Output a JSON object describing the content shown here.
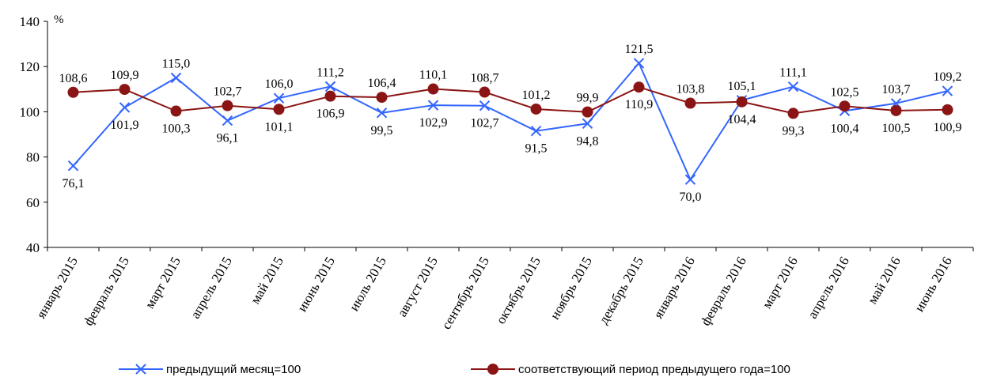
{
  "chart_data": {
    "type": "line",
    "title": "",
    "xlabel": "",
    "ylabel": "%",
    "ylim": [
      40,
      140
    ],
    "yticks": [
      40,
      60,
      80,
      100,
      120,
      140
    ],
    "grid": false,
    "legend_position": "bottom",
    "categories": [
      "январь  2015",
      "февраль  2015",
      "март 2015",
      "апрель 2015",
      "май 2015",
      "июнь 2015",
      "июль 2015",
      "август 2015",
      "сентябрь 2015",
      "октябрь 2015",
      "ноябрь 2015",
      "декабрь 2015",
      "январь 2016",
      "февраль 2016",
      "март  2016",
      "апрель 2016",
      "май 2016",
      "июнь 2016"
    ],
    "series": [
      {
        "name": "предыдущий месяц=100",
        "color": "#3366ff",
        "marker": "x",
        "values": [
          76.1,
          101.9,
          115.0,
          96.1,
          106.0,
          111.2,
          99.5,
          102.9,
          102.7,
          91.5,
          94.8,
          121.5,
          70.0,
          105.1,
          111.1,
          100.4,
          103.7,
          109.2
        ],
        "labels": [
          "76,1",
          "101,9",
          "115,0",
          "96,1",
          "106,0",
          "111,2",
          "99,5",
          "102,9",
          "102,7",
          "91,5",
          "94,8",
          "121,5",
          "70,0",
          "105,1",
          "111,1",
          "100,4",
          "103,7",
          "109,2"
        ]
      },
      {
        "name": "соответствующий период предыдущего года=100",
        "color": "#8b1414",
        "marker": "circle",
        "values": [
          108.6,
          109.9,
          100.3,
          102.7,
          101.1,
          106.9,
          106.4,
          110.1,
          108.7,
          101.2,
          99.9,
          110.9,
          103.8,
          104.4,
          99.3,
          102.5,
          100.5,
          100.9
        ],
        "labels": [
          "108,6",
          "109,9",
          "100,3",
          "102,7",
          "101,1",
          "106,9",
          "106,4",
          "110,1",
          "108,7",
          "101,2",
          "99,9",
          "110,9",
          "103,8",
          "104,4",
          "99,3",
          "102,5",
          "100,5",
          "100,9"
        ]
      }
    ]
  }
}
